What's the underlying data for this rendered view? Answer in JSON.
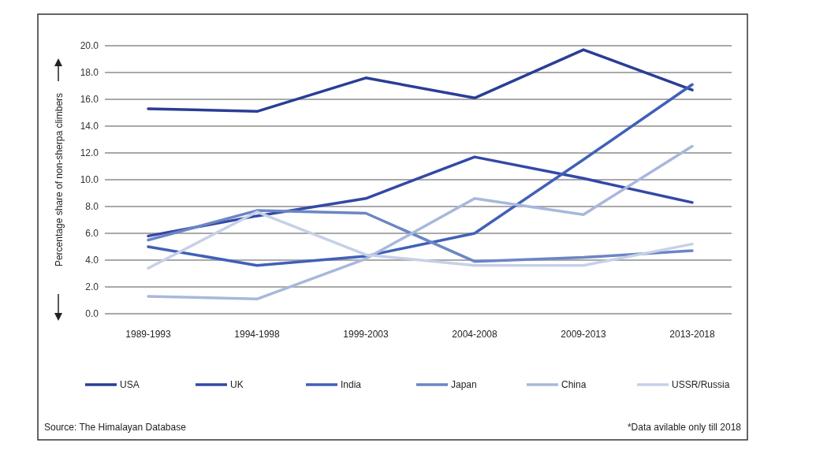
{
  "chart_data": {
    "type": "line",
    "ylabel": "Percentage share of non-sherpa climbers",
    "categories": [
      "1989-1993",
      "1994-1998",
      "1999-2003",
      "2004-2008",
      "2009-2013",
      "2013-2018"
    ],
    "series": [
      {
        "name": "USA",
        "color": "#2a3d96",
        "values": [
          15.3,
          15.1,
          17.6,
          16.1,
          19.7,
          16.7
        ]
      },
      {
        "name": "UK",
        "color": "#3448a6",
        "values": [
          5.8,
          7.3,
          8.6,
          11.7,
          10.1,
          8.3
        ]
      },
      {
        "name": "India",
        "color": "#4060b8",
        "values": [
          5.0,
          3.6,
          4.3,
          6.0,
          11.5,
          17.1
        ]
      },
      {
        "name": "Japan",
        "color": "#6a86c4",
        "values": [
          5.5,
          7.7,
          7.5,
          3.9,
          4.2,
          4.7
        ]
      },
      {
        "name": "China",
        "color": "#a8b8dc",
        "values": [
          1.3,
          1.1,
          4.1,
          8.6,
          7.4,
          12.5
        ]
      },
      {
        "name": "USSR/Russia",
        "color": "#c6d0e8",
        "values": [
          3.4,
          7.6,
          4.4,
          3.6,
          3.6,
          5.2
        ]
      }
    ],
    "ylim": [
      0,
      20
    ],
    "yticks": [
      {
        "value": 0,
        "label": "0.0"
      },
      {
        "value": 2,
        "label": "2.0"
      },
      {
        "value": 4,
        "label": "4.0"
      },
      {
        "value": 6,
        "label": "6.0"
      },
      {
        "value": 8,
        "label": "8.0"
      },
      {
        "value": 10,
        "label": "10.0"
      },
      {
        "value": 12,
        "label": "12.0"
      },
      {
        "value": 14,
        "label": "14.0"
      },
      {
        "value": 16,
        "label": "16.0"
      },
      {
        "value": 18,
        "label": "18.0"
      },
      {
        "value": 20,
        "label": "20.0"
      }
    ],
    "grid": "y",
    "legend": "bottom",
    "marker": "none",
    "line_style": "solid",
    "annotations": [
      "Source: The Himalayan Database",
      "*Data avilable only till 2018"
    ]
  }
}
